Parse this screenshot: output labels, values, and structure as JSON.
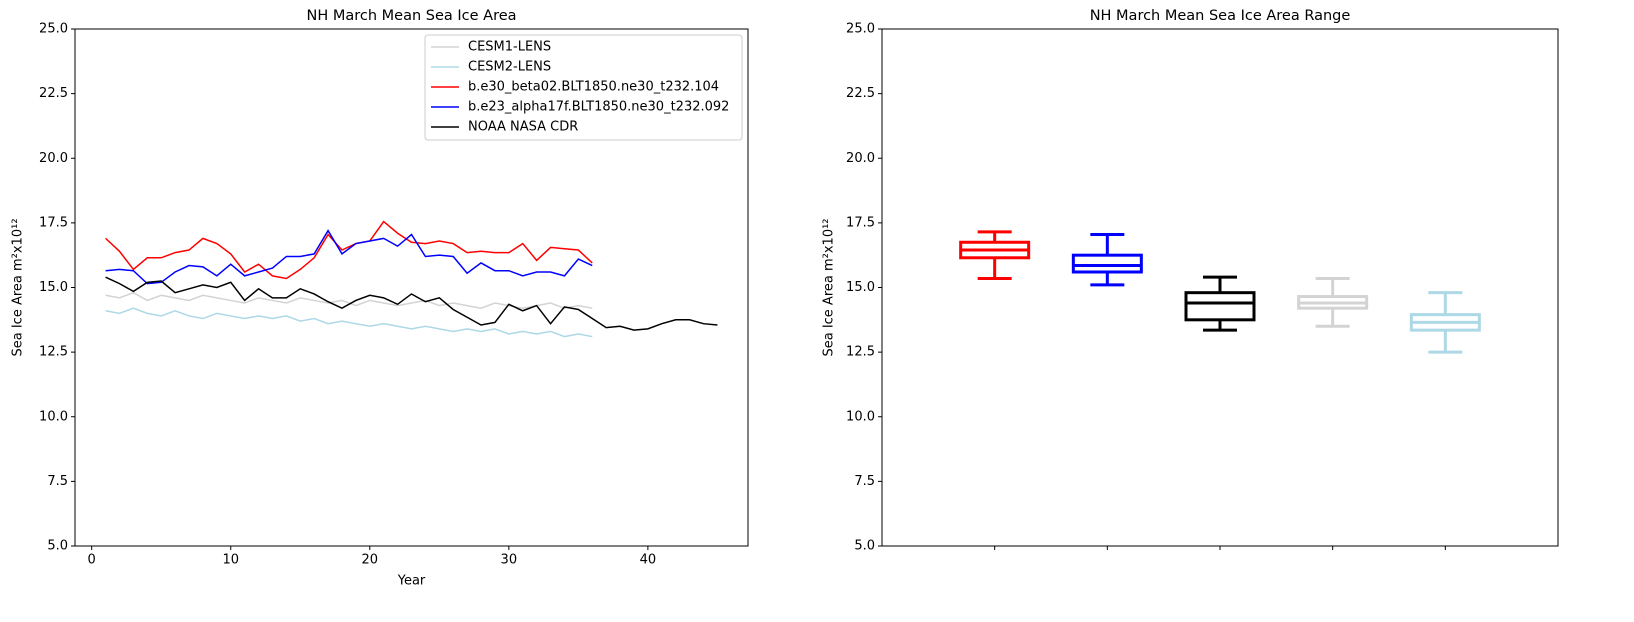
{
  "chart_data": [
    {
      "type": "line",
      "title": "NH March Mean Sea Ice Area",
      "xlabel": "Year",
      "ylabel": "Sea Ice Area m²x10¹²",
      "x": [
        1,
        2,
        3,
        4,
        5,
        6,
        7,
        8,
        9,
        10,
        11,
        12,
        13,
        14,
        15,
        16,
        17,
        18,
        19,
        20,
        21,
        22,
        23,
        24,
        25,
        26,
        27,
        28,
        29,
        30,
        31,
        32,
        33,
        34,
        35,
        36,
        37,
        38,
        39,
        40,
        41,
        42,
        43,
        44,
        45
      ],
      "xlim": [
        -1.2,
        47.2
      ],
      "xticks": [
        0,
        10,
        20,
        30,
        40
      ],
      "ylim": [
        5,
        25
      ],
      "yticks": [
        {
          "value": 5,
          "label": "5.0"
        },
        7.5,
        {
          "value": 10,
          "label": "10.0"
        },
        12.5,
        {
          "value": 15,
          "label": "15.0"
        },
        17.5,
        {
          "value": 20,
          "label": "20.0"
        },
        22.5,
        {
          "value": 25,
          "label": "25.0"
        }
      ],
      "legend": "upper right",
      "series": [
        {
          "name": "CESM1-LENS",
          "color": "#d3d3d3",
          "values": [
            14.7,
            14.6,
            14.8,
            14.5,
            14.7,
            14.6,
            14.5,
            14.7,
            14.6,
            14.5,
            14.4,
            14.6,
            14.5,
            14.4,
            14.6,
            14.5,
            14.4,
            14.5,
            14.3,
            14.5,
            14.4,
            14.3,
            14.4,
            14.5,
            14.3,
            14.4,
            14.3,
            14.2,
            14.4,
            14.3,
            14.2,
            14.3,
            14.4,
            14.2,
            14.3,
            14.2,
            null,
            null,
            null,
            null,
            null,
            null,
            null,
            null,
            null
          ]
        },
        {
          "name": "CESM2-LENS",
          "color": "#add8e6",
          "values": [
            14.1,
            14.0,
            14.2,
            14.0,
            13.9,
            14.1,
            13.9,
            13.8,
            14.0,
            13.9,
            13.8,
            13.9,
            13.8,
            13.9,
            13.7,
            13.8,
            13.6,
            13.7,
            13.6,
            13.5,
            13.6,
            13.5,
            13.4,
            13.5,
            13.4,
            13.3,
            13.4,
            13.3,
            13.4,
            13.2,
            13.3,
            13.2,
            13.3,
            13.1,
            13.2,
            13.1,
            null,
            null,
            null,
            null,
            null,
            null,
            null,
            null,
            null
          ]
        },
        {
          "name": "b.e30_beta02.BLT1850.ne30_t232.104",
          "color": "#ff0000",
          "values": [
            16.9,
            16.4,
            15.7,
            16.15,
            16.15,
            16.35,
            16.45,
            16.9,
            16.7,
            16.3,
            15.6,
            15.9,
            15.45,
            15.35,
            15.7,
            16.15,
            17.05,
            16.45,
            16.7,
            16.8,
            17.55,
            17.1,
            16.75,
            16.7,
            16.8,
            16.7,
            16.35,
            16.4,
            16.35,
            16.35,
            16.7,
            16.05,
            16.55,
            16.5,
            16.45,
            15.95,
            null,
            null,
            null,
            null,
            null,
            null,
            null,
            null,
            null
          ]
        },
        {
          "name": "b.e23_alpha17f.BLT1850.ne30_t232.092",
          "color": "#0000ff",
          "values": [
            15.65,
            15.7,
            15.65,
            15.15,
            15.2,
            15.6,
            15.85,
            15.8,
            15.45,
            15.9,
            15.45,
            15.6,
            15.75,
            16.2,
            16.2,
            16.3,
            17.2,
            16.3,
            16.7,
            16.8,
            16.9,
            16.6,
            17.05,
            16.2,
            16.25,
            16.2,
            15.55,
            15.95,
            15.65,
            15.65,
            15.45,
            15.6,
            15.6,
            15.45,
            16.1,
            15.85,
            null,
            null,
            null,
            null,
            null,
            null,
            null,
            null,
            null
          ]
        },
        {
          "name": "NOAA NASA CDR",
          "color": "#000000",
          "values": [
            15.4,
            15.15,
            14.85,
            15.2,
            15.25,
            14.8,
            14.95,
            15.1,
            15.0,
            15.2,
            14.5,
            14.95,
            14.6,
            14.6,
            14.95,
            14.75,
            14.45,
            14.2,
            14.5,
            14.7,
            14.6,
            14.35,
            14.75,
            14.45,
            14.6,
            14.15,
            13.85,
            13.55,
            13.65,
            14.35,
            14.1,
            14.3,
            13.6,
            14.25,
            14.15,
            13.8,
            13.45,
            13.5,
            13.35,
            13.4,
            13.6,
            13.75,
            13.75,
            13.6,
            13.55
          ]
        }
      ]
    },
    {
      "type": "box",
      "title": "NH March Mean Sea Ice Area Range",
      "ylabel": "Sea Ice Area m²x10¹²",
      "categories": [
        null,
        null,
        null,
        null,
        null
      ],
      "ylim": [
        5,
        25
      ],
      "yticks": [
        {
          "value": 5,
          "label": "5.0"
        },
        7.5,
        {
          "value": 10,
          "label": "10.0"
        },
        12.5,
        {
          "value": 15,
          "label": "15.0"
        },
        17.5,
        {
          "value": 20,
          "label": "20.0"
        },
        22.5,
        {
          "value": 25,
          "label": "25.0"
        }
      ],
      "colors": [
        "#ff0000",
        "#0000ff",
        "#000000",
        "#d3d3d3",
        "#add8e6"
      ],
      "values": [
        [
          15.35,
          16.15,
          16.45,
          16.75,
          17.15
        ],
        [
          15.1,
          15.6,
          15.85,
          16.25,
          17.05
        ],
        [
          13.35,
          13.75,
          14.4,
          14.8,
          15.4
        ],
        [
          13.5,
          14.2,
          14.4,
          14.65,
          15.35
        ],
        [
          12.5,
          13.35,
          13.65,
          13.95,
          14.8
        ]
      ]
    }
  ]
}
